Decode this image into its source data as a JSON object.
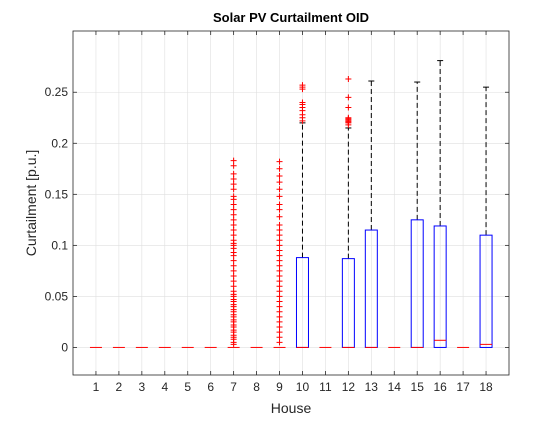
{
  "chart_data": {
    "type": "box",
    "title": "Solar PV Curtailment OID",
    "xlabel": "House",
    "ylabel": "Curtailment [p.u.]",
    "categories": [
      "1",
      "2",
      "3",
      "4",
      "5",
      "6",
      "7",
      "8",
      "9",
      "10",
      "11",
      "12",
      "13",
      "14",
      "15",
      "16",
      "17",
      "18"
    ],
    "ylim": [
      -0.027,
      0.31
    ],
    "yticks": [
      0,
      0.05,
      0.1,
      0.15,
      0.2,
      0.25
    ],
    "ytick_labels": [
      "0",
      "0.05",
      "0.1",
      "0.15",
      "0.2",
      "0.25"
    ],
    "grid": true,
    "colors": {
      "box": "#0000ff",
      "median": "#ff0000",
      "whisker": "#000000",
      "outlier": "#ff0000"
    },
    "boxes": [
      {
        "category": "1",
        "q1": 0,
        "median": 0,
        "q3": 0,
        "whisker_low": 0,
        "whisker_high": 0,
        "outliers": []
      },
      {
        "category": "2",
        "q1": 0,
        "median": 0,
        "q3": 0,
        "whisker_low": 0,
        "whisker_high": 0,
        "outliers": []
      },
      {
        "category": "3",
        "q1": 0,
        "median": 0,
        "q3": 0,
        "whisker_low": 0,
        "whisker_high": 0,
        "outliers": []
      },
      {
        "category": "4",
        "q1": 0,
        "median": 0,
        "q3": 0,
        "whisker_low": 0,
        "whisker_high": 0,
        "outliers": []
      },
      {
        "category": "5",
        "q1": 0,
        "median": 0,
        "q3": 0,
        "whisker_low": 0,
        "whisker_high": 0,
        "outliers": []
      },
      {
        "category": "6",
        "q1": 0,
        "median": 0,
        "q3": 0,
        "whisker_low": 0,
        "whisker_high": 0,
        "outliers": []
      },
      {
        "category": "7",
        "q1": 0,
        "median": 0,
        "q3": 0,
        "whisker_low": 0,
        "whisker_high": 0,
        "outliers": [
          0.183,
          0.178,
          0.17,
          0.165,
          0.16,
          0.155,
          0.148,
          0.145,
          0.14,
          0.135,
          0.13,
          0.125,
          0.12,
          0.115,
          0.11,
          0.105,
          0.102,
          0.1,
          0.097,
          0.093,
          0.09,
          0.085,
          0.08,
          0.075,
          0.07,
          0.065,
          0.06,
          0.055,
          0.052,
          0.05,
          0.047,
          0.045,
          0.042,
          0.04,
          0.037,
          0.035,
          0.032,
          0.03,
          0.027,
          0.025,
          0.022,
          0.02,
          0.017,
          0.015,
          0.012,
          0.01,
          0.008,
          0.005,
          0.003
        ]
      },
      {
        "category": "8",
        "q1": 0,
        "median": 0,
        "q3": 0,
        "whisker_low": 0,
        "whisker_high": 0,
        "outliers": []
      },
      {
        "category": "9",
        "q1": 0,
        "median": 0,
        "q3": 0,
        "whisker_low": 0,
        "whisker_high": 0,
        "outliers": [
          0.182,
          0.175,
          0.168,
          0.162,
          0.155,
          0.148,
          0.14,
          0.135,
          0.128,
          0.12,
          0.115,
          0.11,
          0.105,
          0.1,
          0.095,
          0.09,
          0.085,
          0.08,
          0.075,
          0.07,
          0.065,
          0.06,
          0.055,
          0.05,
          0.045,
          0.04,
          0.035,
          0.03,
          0.025,
          0.02,
          0.015,
          0.01,
          0.005
        ]
      },
      {
        "category": "10",
        "q1": 0,
        "median": 0,
        "q3": 0.088,
        "whisker_low": 0,
        "whisker_high": 0.22,
        "outliers": [
          0.257,
          0.255,
          0.253,
          0.24,
          0.238,
          0.235,
          0.232,
          0.228,
          0.225,
          0.222
        ]
      },
      {
        "category": "11",
        "q1": 0,
        "median": 0,
        "q3": 0,
        "whisker_low": 0,
        "whisker_high": 0,
        "outliers": []
      },
      {
        "category": "12",
        "q1": 0,
        "median": 0,
        "q3": 0.087,
        "whisker_low": 0,
        "whisker_high": 0.215,
        "outliers": [
          0.263,
          0.245,
          0.235,
          0.225,
          0.224,
          0.223,
          0.222,
          0.221,
          0.22,
          0.218
        ]
      },
      {
        "category": "13",
        "q1": 0,
        "median": 0,
        "q3": 0.115,
        "whisker_low": 0,
        "whisker_high": 0.261,
        "outliers": []
      },
      {
        "category": "14",
        "q1": 0,
        "median": 0,
        "q3": 0,
        "whisker_low": 0,
        "whisker_high": 0,
        "outliers": []
      },
      {
        "category": "15",
        "q1": 0,
        "median": 0,
        "q3": 0.125,
        "whisker_low": 0,
        "whisker_high": 0.26,
        "outliers": []
      },
      {
        "category": "16",
        "q1": 0,
        "median": 0.007,
        "q3": 0.119,
        "whisker_low": 0,
        "whisker_high": 0.281,
        "outliers": []
      },
      {
        "category": "17",
        "q1": 0,
        "median": 0,
        "q3": 0,
        "whisker_low": 0,
        "whisker_high": 0,
        "outliers": []
      },
      {
        "category": "18",
        "q1": 0,
        "median": 0.003,
        "q3": 0.11,
        "whisker_low": 0,
        "whisker_high": 0.255,
        "outliers": []
      }
    ]
  }
}
